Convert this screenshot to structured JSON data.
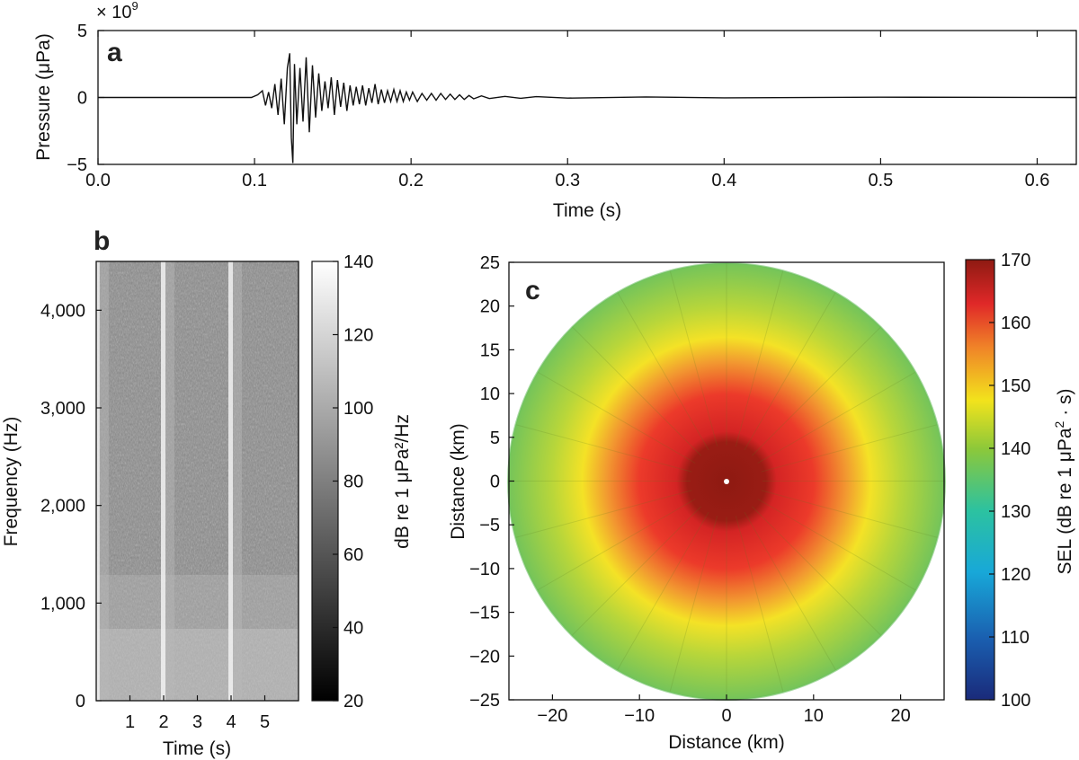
{
  "chart_data": [
    {
      "type": "line",
      "panel_label": "a",
      "title": "",
      "xlabel": "Time (s)",
      "ylabel": "Pressure (μPa)",
      "y_multiplier": "× 10",
      "y_multiplier_exp": "9",
      "xlim": [
        0,
        0.625
      ],
      "ylim": [
        -5,
        5
      ],
      "xticks": [
        0.0,
        0.1,
        0.2,
        0.3,
        0.4,
        0.5,
        0.6
      ],
      "xtick_labels": [
        "0.0",
        "0.1",
        "0.2",
        "0.3",
        "0.4",
        "0.5",
        "0.6"
      ],
      "yticks": [
        5,
        0,
        -5
      ],
      "ytick_labels": [
        "5",
        "0",
        "−5"
      ],
      "series": [
        {
          "name": "pressure",
          "x": [
            0,
            0.098,
            0.102,
            0.105,
            0.107,
            0.109,
            0.111,
            0.113,
            0.115,
            0.117,
            0.119,
            0.121,
            0.1225,
            0.1235,
            0.1245,
            0.1255,
            0.127,
            0.129,
            0.131,
            0.133,
            0.135,
            0.137,
            0.139,
            0.141,
            0.143,
            0.145,
            0.147,
            0.149,
            0.151,
            0.153,
            0.155,
            0.157,
            0.159,
            0.161,
            0.163,
            0.165,
            0.167,
            0.169,
            0.171,
            0.173,
            0.175,
            0.177,
            0.179,
            0.181,
            0.183,
            0.185,
            0.187,
            0.189,
            0.191,
            0.193,
            0.195,
            0.197,
            0.199,
            0.201,
            0.204,
            0.207,
            0.21,
            0.213,
            0.216,
            0.219,
            0.222,
            0.225,
            0.228,
            0.231,
            0.234,
            0.237,
            0.24,
            0.245,
            0.25,
            0.26,
            0.27,
            0.28,
            0.3,
            0.35,
            0.4,
            0.5,
            0.625
          ],
          "values": [
            0,
            0,
            0.2,
            0.5,
            -0.6,
            0.4,
            -0.8,
            1.0,
            -1.3,
            1.4,
            -2.0,
            2.2,
            3.3,
            -3.0,
            -4.9,
            2.5,
            -2.0,
            2.2,
            -1.8,
            3.0,
            -2.6,
            2.4,
            -1.5,
            1.8,
            -1.0,
            1.2,
            -0.8,
            1.5,
            -1.3,
            1.3,
            -0.7,
            1.1,
            -1.0,
            0.9,
            -0.6,
            0.8,
            -0.5,
            0.9,
            -0.6,
            0.7,
            -0.4,
            1.0,
            -0.5,
            0.6,
            -0.4,
            0.5,
            -0.3,
            0.6,
            -0.3,
            0.5,
            -0.3,
            0.4,
            -0.2,
            0.4,
            -0.3,
            0.3,
            -0.2,
            0.3,
            -0.2,
            0.3,
            -0.15,
            0.25,
            -0.15,
            0.2,
            -0.15,
            0.15,
            -0.1,
            0.12,
            -0.08,
            0.08,
            -0.06,
            0.06,
            -0.05,
            0.04,
            -0.03,
            0.02,
            0
          ]
        }
      ]
    },
    {
      "type": "heatmap",
      "panel_label": "b",
      "title": "",
      "xlabel": "Time (s)",
      "ylabel": "Frequency (Hz)",
      "xlim": [
        0,
        6
      ],
      "ylim": [
        0,
        4500
      ],
      "xticks": [
        1,
        2,
        3,
        4,
        5
      ],
      "xtick_labels": [
        "1",
        "2",
        "3",
        "4",
        "5"
      ],
      "yticks": [
        0,
        1000,
        2000,
        3000,
        4000
      ],
      "ytick_labels": [
        "0",
        "1,000",
        "2,000",
        "3,000",
        "4,000"
      ],
      "pulse_times": [
        0.05,
        2.0,
        4.0
      ],
      "colormap": "gray",
      "colorbar": {
        "label": "dB re 1 μPa²/Hz",
        "min": 20,
        "max": 140,
        "ticks": [
          140,
          120,
          100,
          80,
          60,
          40,
          20
        ],
        "tick_labels": [
          "140",
          "120",
          "100",
          "80",
          "60",
          "40",
          "20"
        ]
      }
    },
    {
      "type": "heatmap",
      "panel_label": "c",
      "title": "",
      "xlabel": "Distance (km)",
      "ylabel": "Distance (km)",
      "xlim": [
        -25,
        25
      ],
      "ylim": [
        -25,
        25
      ],
      "xticks": [
        -20,
        -10,
        0,
        10,
        20
      ],
      "xtick_labels": [
        "−20",
        "−10",
        "0",
        "10",
        "20"
      ],
      "yticks": [
        25,
        20,
        15,
        10,
        5,
        0,
        -5,
        -10,
        -15,
        -20,
        -25
      ],
      "ytick_labels": [
        "25",
        "20",
        "15",
        "10",
        "5",
        "0",
        "−5",
        "−10",
        "−15",
        "−20",
        "−25"
      ],
      "radius_km": 25,
      "sel_vs_range": {
        "range_km": [
          0,
          5,
          8,
          12,
          16,
          20,
          25
        ],
        "sel_db": [
          170,
          166,
          160,
          153,
          147,
          142,
          138
        ]
      },
      "colormap": "jet",
      "colorbar": {
        "label_prefix": "SEL (dB re 1 μPa",
        "label_exp": "2",
        "label_suffix": " · s)",
        "min": 100,
        "max": 170,
        "ticks": [
          170,
          160,
          150,
          140,
          130,
          120,
          110,
          100
        ],
        "tick_labels": [
          "170",
          "160",
          "150",
          "140",
          "130",
          "120",
          "110",
          "100"
        ]
      }
    }
  ]
}
